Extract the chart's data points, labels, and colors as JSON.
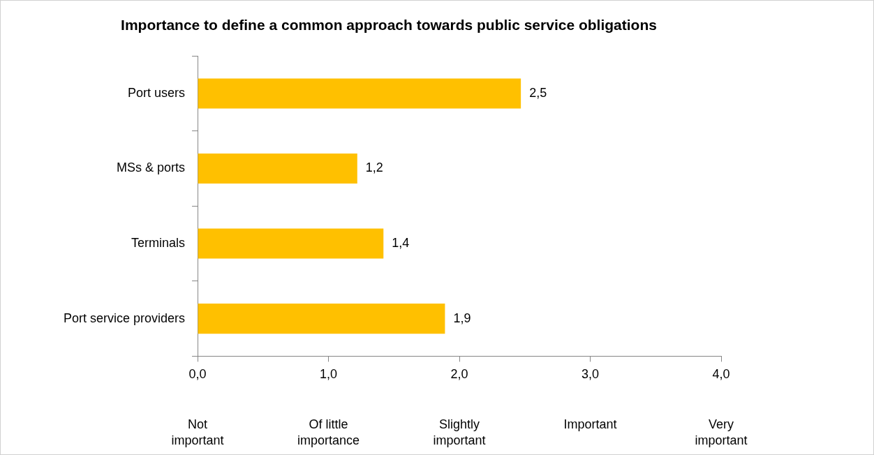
{
  "chart_data": {
    "type": "bar",
    "orientation": "horizontal",
    "title": "Importance to define a common approach towards public service obligations",
    "categories": [
      "Port users",
      "MSs & ports",
      "Terminals",
      "Port service providers"
    ],
    "values": [
      2.47,
      1.22,
      1.42,
      1.89
    ],
    "value_labels": [
      "2,5",
      "1,2",
      "1,4",
      "1,9"
    ],
    "color": "#ffc000",
    "xlim": [
      0,
      4
    ],
    "xticks": [
      {
        "value": 0,
        "label": "0,0"
      },
      {
        "value": 1,
        "label": "1,0"
      },
      {
        "value": 2,
        "label": "2,0"
      },
      {
        "value": 3,
        "label": "3,0"
      },
      {
        "value": 4,
        "label": "4,0"
      }
    ],
    "annotations": [
      "Not important",
      "Of little importance",
      "Slightly important",
      "Important",
      "Very important"
    ],
    "grid": false,
    "legend": false
  }
}
